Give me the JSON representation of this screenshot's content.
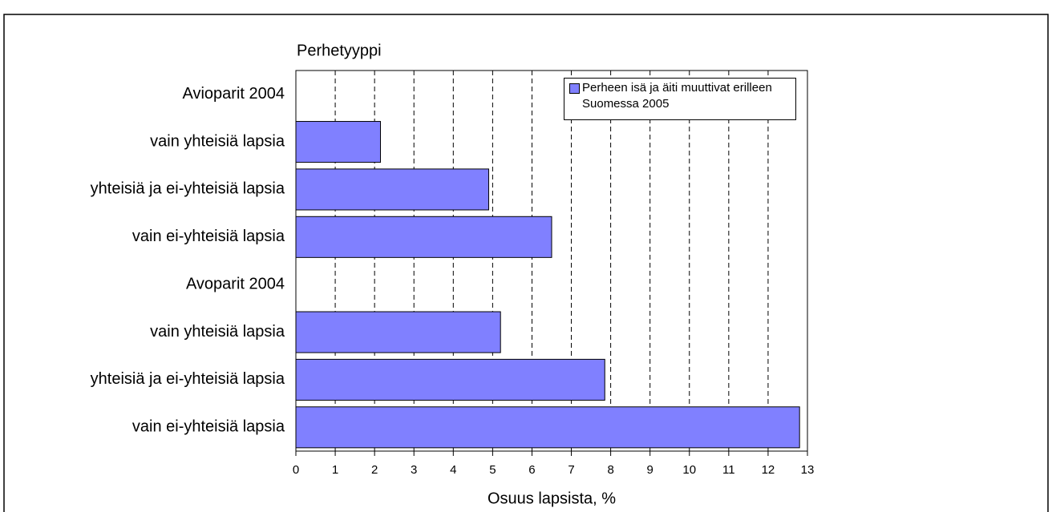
{
  "chart_data": {
    "type": "barh",
    "ylabel": "Perhetyyppi",
    "xlabel": "Osuus lapsista, %",
    "categories": [
      "Avioparit 2004",
      "vain yhteisiä lapsia",
      "yhteisiä ja ei-yhteisiä lapsia",
      "vain ei-yhteisiä lapsia",
      "Avoparit 2004",
      "vain yhteisiä lapsia",
      "yhteisiä ja ei-yhteisiä lapsia",
      "vain ei-yhteisiä lapsia"
    ],
    "series": [
      {
        "name": "Perheen isä ja äiti muuttivat erilleen Suomessa 2005",
        "color": "#8080ff",
        "values": [
          null,
          2.15,
          4.9,
          6.5,
          null,
          5.2,
          7.85,
          12.8
        ]
      }
    ],
    "xlim": [
      0,
      13
    ],
    "xticks": [
      0,
      1,
      2,
      3,
      4,
      5,
      6,
      7,
      8,
      9,
      10,
      11,
      12,
      13
    ],
    "grid": true,
    "legend": "upper right"
  }
}
